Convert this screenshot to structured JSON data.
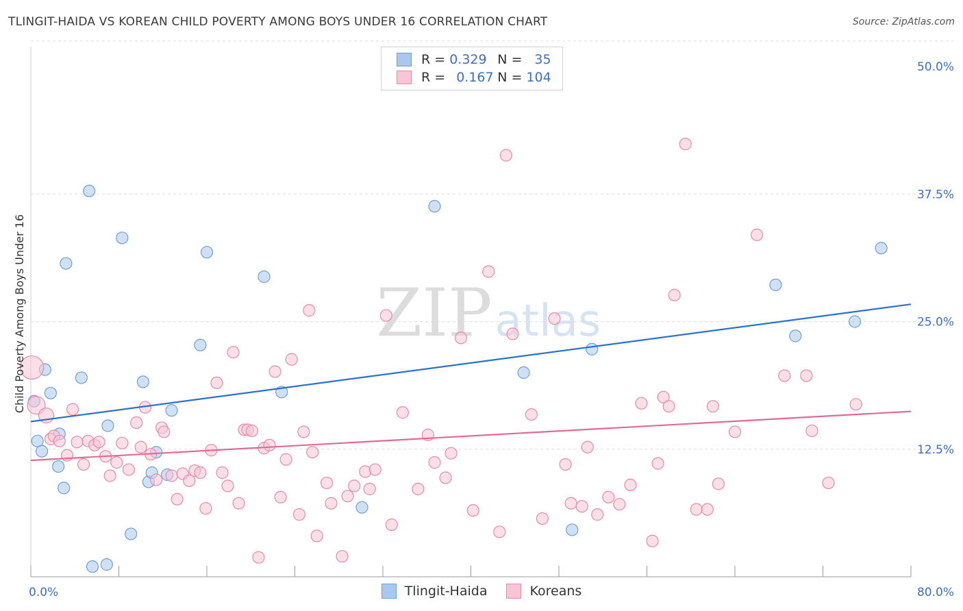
{
  "title": "TLINGIT-HAIDA VS KOREAN CHILD POVERTY AMONG BOYS UNDER 16 CORRELATION CHART",
  "source": "Source: ZipAtlas.com",
  "watermark": {
    "zip": "ZIP",
    "atlas": "atlas"
  },
  "legend": {
    "rows": [
      {
        "r_label": "R = ",
        "r_value": "0.329",
        "n_label": "N = ",
        "n_value": "35",
        "color": "#aac8ee",
        "border": "#6f9fd8"
      },
      {
        "r_label": "R = ",
        "r_value": "0.167",
        "n_label": "N = ",
        "n_value": "104",
        "color": "#f9c4d4",
        "border": "#e88aa8"
      }
    ]
  },
  "bottom_legend": [
    {
      "label": "Tlingit-Haida",
      "color": "#aac8ee",
      "border": "#6f9fd8"
    },
    {
      "label": "Koreans",
      "color": "#f9c4d4",
      "border": "#e88aa8"
    }
  ],
  "chart_data": {
    "type": "scatter",
    "xlabel": "",
    "ylabel": "Child Poverty Among Boys Under 16",
    "xlim": [
      0,
      80
    ],
    "ylim": [
      0,
      50
    ],
    "x_tick_labels": [
      {
        "value": 0,
        "label": "0.0%"
      },
      {
        "value": 80,
        "label": "80.0%"
      }
    ],
    "y_tick_labels": [
      {
        "value": 12.5,
        "label": "12.5%"
      },
      {
        "value": 25,
        "label": "25.0%"
      },
      {
        "value": 37.5,
        "label": "37.5%"
      },
      {
        "value": 50,
        "label": "50.0%"
      }
    ],
    "grid": true,
    "series": [
      {
        "name": "Tlingit-Haida",
        "color": "#6f9fd8",
        "fill": "#aac8ee",
        "trend": {
          "x": [
            0,
            80
          ],
          "y": [
            15.2,
            26.7
          ],
          "color": "#2b6fd0"
        },
        "points": [
          [
            0.3,
            17.2
          ],
          [
            0.6,
            13.3
          ],
          [
            1.0,
            12.3
          ],
          [
            1.3,
            20.3
          ],
          [
            1.8,
            18.0
          ],
          [
            2.5,
            10.8
          ],
          [
            2.6,
            14.0
          ],
          [
            3.0,
            8.7
          ],
          [
            3.2,
            30.7
          ],
          [
            4.6,
            19.5
          ],
          [
            5.3,
            37.8
          ],
          [
            5.6,
            1.0
          ],
          [
            6.9,
            1.2
          ],
          [
            7.0,
            14.8
          ],
          [
            8.3,
            33.2
          ],
          [
            9.1,
            4.2
          ],
          [
            10.2,
            19.1
          ],
          [
            10.7,
            9.3
          ],
          [
            11.0,
            10.2
          ],
          [
            11.4,
            12.2
          ],
          [
            12.4,
            10.0
          ],
          [
            12.8,
            16.3
          ],
          [
            15.4,
            22.7
          ],
          [
            16.0,
            31.8
          ],
          [
            21.2,
            29.4
          ],
          [
            22.8,
            18.1
          ],
          [
            30.1,
            6.8
          ],
          [
            36.7,
            36.3
          ],
          [
            44.8,
            20.0
          ],
          [
            49.2,
            4.6
          ],
          [
            51.0,
            22.3
          ],
          [
            67.7,
            28.6
          ],
          [
            69.5,
            23.6
          ],
          [
            74.9,
            25.0
          ],
          [
            77.3,
            32.2
          ]
        ]
      },
      {
        "name": "Koreans",
        "color": "#e88aa8",
        "fill": "#f9c4d4",
        "trend": {
          "x": [
            0,
            80
          ],
          "y": [
            11.4,
            16.2
          ],
          "color": "#e36a92"
        },
        "points": [
          [
            0.1,
            20.5
          ],
          [
            0.5,
            16.8
          ],
          [
            1.4,
            15.8
          ],
          [
            1.8,
            13.5
          ],
          [
            2.1,
            13.8
          ],
          [
            2.6,
            13.3
          ],
          [
            3.3,
            11.9
          ],
          [
            3.8,
            16.4
          ],
          [
            4.2,
            13.2
          ],
          [
            4.8,
            11.0
          ],
          [
            5.2,
            13.3
          ],
          [
            5.8,
            12.9
          ],
          [
            6.2,
            13.2
          ],
          [
            6.8,
            11.8
          ],
          [
            7.2,
            9.9
          ],
          [
            7.8,
            11.2
          ],
          [
            8.3,
            13.1
          ],
          [
            8.9,
            10.5
          ],
          [
            9.6,
            15.1
          ],
          [
            10.0,
            12.7
          ],
          [
            10.4,
            16.6
          ],
          [
            10.9,
            12.0
          ],
          [
            11.4,
            9.5
          ],
          [
            11.9,
            14.6
          ],
          [
            12.1,
            14.2
          ],
          [
            12.8,
            9.9
          ],
          [
            13.3,
            7.6
          ],
          [
            13.8,
            10.1
          ],
          [
            14.4,
            9.4
          ],
          [
            14.9,
            10.4
          ],
          [
            15.4,
            10.2
          ],
          [
            15.9,
            6.7
          ],
          [
            16.4,
            12.4
          ],
          [
            16.9,
            19.0
          ],
          [
            17.4,
            10.2
          ],
          [
            17.9,
            8.9
          ],
          [
            18.4,
            22.0
          ],
          [
            18.9,
            7.2
          ],
          [
            19.4,
            14.4
          ],
          [
            19.7,
            14.4
          ],
          [
            20.1,
            14.3
          ],
          [
            20.7,
            1.9
          ],
          [
            21.2,
            12.6
          ],
          [
            21.7,
            12.9
          ],
          [
            22.2,
            20.1
          ],
          [
            22.7,
            7.8
          ],
          [
            23.2,
            11.5
          ],
          [
            23.7,
            21.3
          ],
          [
            24.4,
            6.1
          ],
          [
            24.8,
            14.2
          ],
          [
            25.3,
            26.1
          ],
          [
            25.6,
            12.2
          ],
          [
            26.0,
            4.0
          ],
          [
            26.9,
            9.2
          ],
          [
            27.3,
            7.2
          ],
          [
            28.3,
            2.0
          ],
          [
            28.8,
            7.9
          ],
          [
            29.4,
            8.9
          ],
          [
            30.4,
            10.3
          ],
          [
            30.8,
            8.6
          ],
          [
            31.3,
            10.5
          ],
          [
            32.3,
            25.6
          ],
          [
            32.8,
            5.1
          ],
          [
            33.8,
            16.1
          ],
          [
            35.2,
            8.6
          ],
          [
            36.1,
            13.9
          ],
          [
            36.7,
            11.2
          ],
          [
            37.7,
            9.7
          ],
          [
            38.2,
            12.1
          ],
          [
            39.1,
            23.4
          ],
          [
            40.2,
            6.5
          ],
          [
            41.6,
            29.9
          ],
          [
            42.6,
            4.4
          ],
          [
            43.2,
            41.3
          ],
          [
            43.8,
            23.8
          ],
          [
            45.5,
            15.9
          ],
          [
            46.5,
            5.7
          ],
          [
            47.6,
            25.3
          ],
          [
            48.6,
            11.0
          ],
          [
            49.1,
            7.2
          ],
          [
            50.1,
            6.9
          ],
          [
            50.6,
            12.7
          ],
          [
            51.5,
            6.1
          ],
          [
            52.5,
            7.8
          ],
          [
            53.5,
            7.1
          ],
          [
            54.5,
            9.0
          ],
          [
            55.5,
            17.0
          ],
          [
            56.5,
            3.5
          ],
          [
            57.0,
            11.1
          ],
          [
            57.5,
            17.6
          ],
          [
            58.0,
            16.7
          ],
          [
            58.5,
            27.6
          ],
          [
            59.5,
            42.4
          ],
          [
            60.5,
            6.6
          ],
          [
            61.5,
            6.6
          ],
          [
            62.0,
            16.7
          ],
          [
            62.5,
            9.1
          ],
          [
            64.0,
            14.2
          ],
          [
            66.0,
            33.5
          ],
          [
            68.5,
            19.7
          ],
          [
            70.5,
            19.7
          ],
          [
            71.0,
            14.3
          ],
          [
            72.5,
            9.2
          ],
          [
            75.0,
            16.9
          ]
        ]
      }
    ]
  }
}
